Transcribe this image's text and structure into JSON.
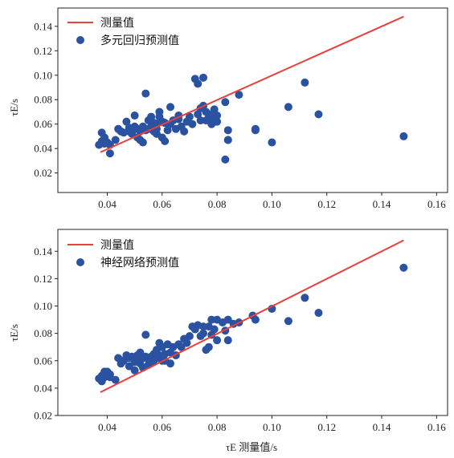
{
  "chart_data": [
    {
      "type": "scatter",
      "xlim": [
        0.022,
        0.164
      ],
      "ylim": [
        0.004,
        0.155
      ],
      "xticks": [
        "0.04",
        "0.06",
        "0.08",
        "0.10",
        "0.12",
        "0.14",
        "0.16"
      ],
      "yticks": [
        "0.02",
        "0.04",
        "0.06",
        "0.08",
        "0.10",
        "0.12",
        "0.14"
      ],
      "xlabel": "",
      "ylabel": "τE/s",
      "grid": false,
      "legend": "top-left",
      "colors": {
        "measured": "#e8403a",
        "predicted": "#2a52a0"
      },
      "series": [
        {
          "name": "测量值",
          "kind": "line",
          "x": [
            0.0375,
            0.148
          ],
          "y": [
            0.037,
            0.148
          ]
        },
        {
          "name": "多元回归预测值",
          "kind": "scatter",
          "x": [
            0.037,
            0.038,
            0.038,
            0.039,
            0.039,
            0.04,
            0.041,
            0.041,
            0.043,
            0.044,
            0.045,
            0.046,
            0.047,
            0.048,
            0.048,
            0.049,
            0.05,
            0.05,
            0.051,
            0.051,
            0.052,
            0.052,
            0.053,
            0.053,
            0.054,
            0.054,
            0.055,
            0.055,
            0.056,
            0.056,
            0.057,
            0.057,
            0.058,
            0.058,
            0.058,
            0.059,
            0.059,
            0.06,
            0.06,
            0.061,
            0.061,
            0.062,
            0.063,
            0.063,
            0.064,
            0.065,
            0.066,
            0.066,
            0.067,
            0.068,
            0.069,
            0.07,
            0.071,
            0.072,
            0.073,
            0.073,
            0.074,
            0.074,
            0.075,
            0.075,
            0.076,
            0.076,
            0.077,
            0.077,
            0.078,
            0.078,
            0.079,
            0.079,
            0.08,
            0.08,
            0.083,
            0.083,
            0.084,
            0.084,
            0.084,
            0.088,
            0.094,
            0.094,
            0.1,
            0.106,
            0.112,
            0.117,
            0.148
          ],
          "y": [
            0.043,
            0.053,
            0.046,
            0.049,
            0.044,
            0.045,
            0.043,
            0.036,
            0.047,
            0.056,
            0.054,
            0.053,
            0.062,
            0.057,
            0.054,
            0.052,
            0.067,
            0.058,
            0.049,
            0.056,
            0.054,
            0.047,
            0.058,
            0.045,
            0.085,
            0.055,
            0.063,
            0.056,
            0.066,
            0.058,
            0.061,
            0.054,
            0.056,
            0.052,
            0.06,
            0.066,
            0.07,
            0.062,
            0.049,
            0.061,
            0.046,
            0.055,
            0.074,
            0.06,
            0.063,
            0.056,
            0.067,
            0.064,
            0.058,
            0.054,
            0.062,
            0.066,
            0.06,
            0.097,
            0.093,
            0.068,
            0.073,
            0.063,
            0.098,
            0.075,
            0.07,
            0.063,
            0.068,
            0.065,
            0.066,
            0.06,
            0.072,
            0.062,
            0.067,
            0.062,
            0.031,
            0.078,
            0.055,
            0.047,
            0.047,
            0.084,
            0.055,
            0.056,
            0.045,
            0.074,
            0.094,
            0.068,
            0.05
          ]
        }
      ]
    },
    {
      "type": "scatter",
      "xlim": [
        0.022,
        0.164
      ],
      "ylim": [
        0.02,
        0.156
      ],
      "xticks": [
        "0.04",
        "0.06",
        "0.08",
        "0.10",
        "0.12",
        "0.14",
        "0.16"
      ],
      "yticks": [
        "0.02",
        "0.04",
        "0.06",
        "0.08",
        "0.10",
        "0.12",
        "0.14"
      ],
      "xlabel": "τE 测量值/s",
      "ylabel": "τE/s",
      "grid": false,
      "legend": "top-left",
      "colors": {
        "measured": "#e8403a",
        "predicted": "#2a52a0"
      },
      "series": [
        {
          "name": "测量值",
          "kind": "line",
          "x": [
            0.0375,
            0.148
          ],
          "y": [
            0.037,
            0.148
          ]
        },
        {
          "name": "神经网络预测值",
          "kind": "scatter",
          "x": [
            0.037,
            0.038,
            0.038,
            0.039,
            0.039,
            0.04,
            0.041,
            0.041,
            0.043,
            0.044,
            0.045,
            0.046,
            0.047,
            0.048,
            0.048,
            0.049,
            0.05,
            0.05,
            0.051,
            0.051,
            0.052,
            0.052,
            0.053,
            0.053,
            0.054,
            0.054,
            0.055,
            0.055,
            0.056,
            0.056,
            0.057,
            0.057,
            0.058,
            0.058,
            0.059,
            0.059,
            0.06,
            0.06,
            0.061,
            0.061,
            0.062,
            0.063,
            0.063,
            0.064,
            0.065,
            0.066,
            0.067,
            0.068,
            0.069,
            0.07,
            0.071,
            0.072,
            0.073,
            0.074,
            0.075,
            0.075,
            0.076,
            0.077,
            0.077,
            0.078,
            0.078,
            0.079,
            0.08,
            0.08,
            0.082,
            0.083,
            0.084,
            0.084,
            0.086,
            0.088,
            0.093,
            0.094,
            0.1,
            0.106,
            0.112,
            0.117,
            0.148
          ],
          "y": [
            0.047,
            0.045,
            0.049,
            0.052,
            0.048,
            0.052,
            0.05,
            0.048,
            0.046,
            0.062,
            0.058,
            0.06,
            0.064,
            0.062,
            0.056,
            0.063,
            0.059,
            0.053,
            0.064,
            0.06,
            0.066,
            0.058,
            0.062,
            0.055,
            0.079,
            0.063,
            0.061,
            0.057,
            0.063,
            0.059,
            0.065,
            0.06,
            0.068,
            0.062,
            0.073,
            0.064,
            0.06,
            0.07,
            0.065,
            0.06,
            0.072,
            0.066,
            0.058,
            0.07,
            0.064,
            0.072,
            0.07,
            0.076,
            0.073,
            0.078,
            0.085,
            0.083,
            0.086,
            0.078,
            0.08,
            0.085,
            0.068,
            0.085,
            0.07,
            0.079,
            0.09,
            0.083,
            0.09,
            0.075,
            0.088,
            0.082,
            0.09,
            0.075,
            0.087,
            0.088,
            0.093,
            0.09,
            0.098,
            0.089,
            0.106,
            0.095,
            0.128
          ]
        }
      ]
    }
  ]
}
